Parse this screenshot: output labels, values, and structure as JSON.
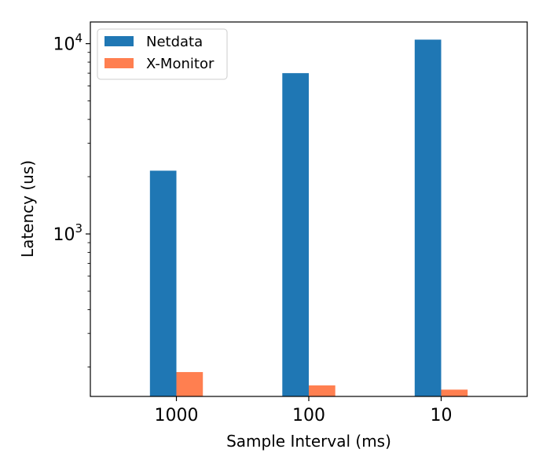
{
  "chart_data": {
    "type": "bar",
    "yscale": "log",
    "categories": [
      "1000",
      "100",
      "10"
    ],
    "series": [
      {
        "name": "Netdata",
        "values": [
          2150,
          7000,
          10500
        ],
        "color": "#1f77b4"
      },
      {
        "name": "X-Monitor",
        "values": [
          188,
          160,
          152
        ],
        "color": "#ff7f50"
      }
    ],
    "xlabel": "Sample Interval (ms)",
    "ylabel": "Latency (us)",
    "ylim": [
      140,
      13000
    ],
    "yticks": [
      {
        "value": 1000,
        "base": "10",
        "exp": "3"
      },
      {
        "value": 10000,
        "base": "10",
        "exp": "4"
      }
    ],
    "grid": false,
    "legend": "top-left"
  }
}
